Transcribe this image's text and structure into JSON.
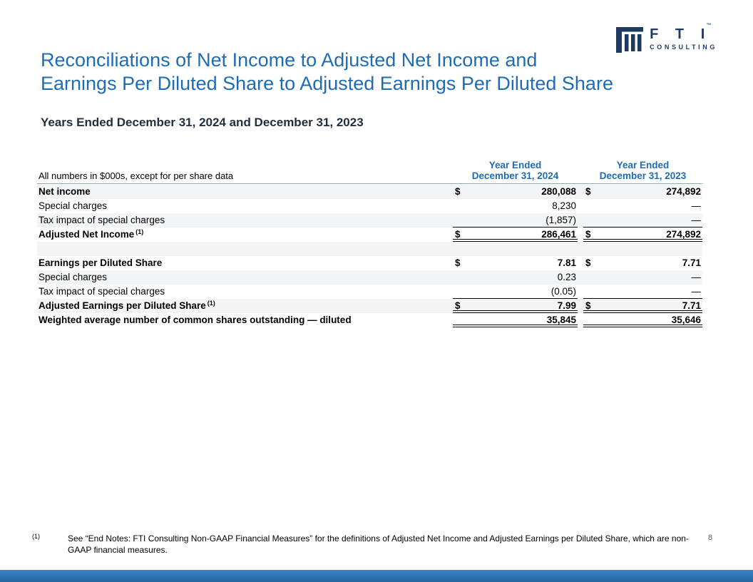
{
  "logo": {
    "fti": "F T I",
    "tm": "™",
    "consulting": "CONSULTING"
  },
  "title": {
    "line1": "Reconciliations of Net Income to Adjusted Net Income and",
    "line2": "Earnings Per Diluted Share to Adjusted Earnings Per Diluted Share"
  },
  "subtitle": "Years Ended December 31, 2024 and December 31, 2023",
  "table": {
    "note": "All numbers in $000s, except for per share data",
    "columns": [
      {
        "line1": "Year Ended",
        "line2": "December 31, 2024"
      },
      {
        "line1": "Year Ended",
        "line2": "December 31, 2023"
      }
    ],
    "rows": [
      {
        "label": "Net income",
        "sup": "",
        "bold": true,
        "shade": true,
        "d24": "$",
        "v24": "280,088",
        "d23": "$",
        "v23": "274,892",
        "underline": "none"
      },
      {
        "label": "Special charges",
        "sup": "",
        "bold": false,
        "shade": false,
        "d24": "",
        "v24": "8,230",
        "d23": "",
        "v23": "—",
        "underline": "none"
      },
      {
        "label": "Tax impact of special charges",
        "sup": "",
        "bold": false,
        "shade": true,
        "d24": "",
        "v24": "(1,857)",
        "d23": "",
        "v23": "—",
        "underline": "single"
      },
      {
        "label": "Adjusted Net Income",
        "sup": "(1)",
        "bold": true,
        "shade": false,
        "d24": "$",
        "v24": "286,461",
        "d23": "$",
        "v23": "274,892",
        "underline": "double"
      },
      {
        "label": "",
        "sup": "",
        "bold": false,
        "shade": true,
        "d24": "",
        "v24": "",
        "d23": "",
        "v23": "",
        "underline": "none"
      },
      {
        "label": "Earnings per Diluted Share",
        "sup": "",
        "bold": true,
        "shade": false,
        "d24": "$",
        "v24": "7.81",
        "d23": "$",
        "v23": "7.71",
        "underline": "none"
      },
      {
        "label": "Special charges",
        "sup": "",
        "bold": false,
        "shade": true,
        "d24": "",
        "v24": "0.23",
        "d23": "",
        "v23": "—",
        "underline": "none"
      },
      {
        "label": "Tax impact of special charges",
        "sup": "",
        "bold": false,
        "shade": false,
        "d24": "",
        "v24": "(0.05)",
        "d23": "",
        "v23": "—",
        "underline": "single"
      },
      {
        "label": "Adjusted Earnings per Diluted Share",
        "sup": "(1)",
        "bold": true,
        "shade": true,
        "d24": "$",
        "v24": "7.99",
        "d23": "$",
        "v23": "7.71",
        "underline": "double"
      },
      {
        "label": "Weighted average number of common shares outstanding — diluted",
        "sup": "",
        "bold": true,
        "shade": false,
        "d24": "",
        "v24": "35,845",
        "d23": "",
        "v23": "35,646",
        "underline": "double"
      }
    ]
  },
  "footnote": {
    "marker": "(1)",
    "line1": "See “End Notes: FTI Consulting Non-GAAP Financial Measures” for the definitions of Adjusted Net Income and Adjusted Earnings per Diluted Share, which are non-",
    "line2": "GAAP financial measures."
  },
  "page_number": "8",
  "colors": {
    "accent_blue": "#1E6CB5",
    "logo_navy": "#1F3A5F",
    "subtitle_dark": "#22303E",
    "row_stripe": "#F3F4F6",
    "bottom_bar_blue": "#2E75B6",
    "page_number_gray": "#595959"
  }
}
